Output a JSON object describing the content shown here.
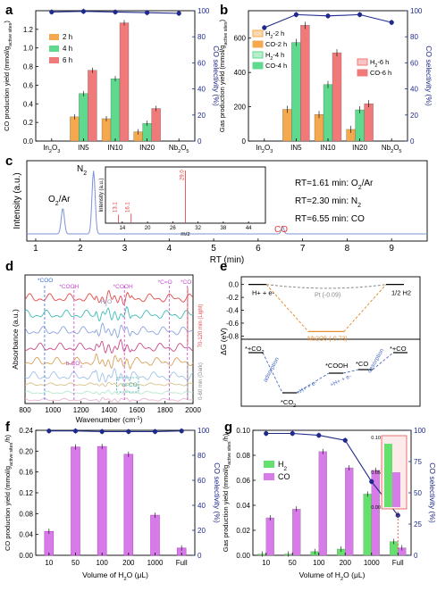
{
  "colors": {
    "orange": "#f4a94f",
    "green": "#5fd98d",
    "red": "#f07a7a",
    "navy": "#1f2a8c",
    "purple": "#d77be8",
    "green2": "#66e06d",
    "violet": "#b436c8",
    "trace_blue": "#7d93d6",
    "mass_red": "#e23b3b",
    "dash_orange": "#e69138",
    "dash_gray": "#8a8a8a"
  },
  "chart_data": [
    {
      "panel": "a",
      "type": "bar",
      "categories": [
        "In2O3",
        "IN5",
        "IN10",
        "IN20",
        "Nb2O5"
      ],
      "category_labels": [
        [
          "In",
          "2",
          "O",
          "3"
        ],
        [
          "IN5"
        ],
        [
          "IN10"
        ],
        [
          "IN20"
        ],
        [
          "Nb",
          "2",
          "O",
          "5"
        ]
      ],
      "series": [
        {
          "name": "2 h",
          "values": [
            0.0,
            0.26,
            0.24,
            0.1,
            0.0
          ]
        },
        {
          "name": "4 h",
          "values": [
            0.0,
            0.51,
            0.67,
            0.19,
            0.0
          ]
        },
        {
          "name": "6 h",
          "values": [
            0.0,
            0.76,
            1.27,
            0.35,
            0.0
          ]
        }
      ],
      "ylabel": "CO production yield (mmol/g",
      "ylabel_sub": "active sites",
      "ylabel_end": ")",
      "y2label": "CO selectivity (%)",
      "ylim": [
        0,
        1.4
      ],
      "yticks": [
        "0.0",
        "0.2",
        "0.4",
        "0.6",
        "0.8",
        "1.0",
        "1.2"
      ],
      "y2lim": [
        0,
        100
      ],
      "y2ticks": [
        "0",
        "20",
        "40",
        "60",
        "80",
        "100"
      ],
      "selectivity": [
        99.0,
        99.5,
        99.0,
        98.5,
        98.0
      ],
      "legend_position": "upper-left"
    },
    {
      "panel": "b",
      "type": "bar",
      "categories": [
        "In2O3",
        "IN5",
        "IN10",
        "IN20",
        "Nb2O5"
      ],
      "category_labels": [
        [
          "In",
          "2",
          "O",
          "3"
        ],
        [
          "IN5"
        ],
        [
          "IN10"
        ],
        [
          "IN20"
        ],
        [
          "Nb",
          "2",
          "O",
          "5"
        ]
      ],
      "series": [
        {
          "name": "H2-2 h",
          "legend_label": [
            "H",
            "2",
            "-2 h"
          ],
          "values": [
            0,
            0,
            0,
            0,
            0
          ]
        },
        {
          "name": "CO-2 h",
          "values": [
            0,
            185,
            155,
            68,
            0
          ]
        },
        {
          "name": "H2-4 h",
          "legend_label": [
            "H",
            "2",
            "-4 h"
          ],
          "values": [
            0,
            0,
            0,
            0,
            0
          ]
        },
        {
          "name": "CO-4 h",
          "values": [
            0,
            575,
            330,
            182,
            0
          ]
        },
        {
          "name": "H2-6 h",
          "legend_label": [
            "H",
            "2",
            "-6 h"
          ],
          "values": [
            0,
            0,
            0,
            0,
            0
          ]
        },
        {
          "name": "CO-6 h",
          "values": [
            0,
            675,
            515,
            218,
            0
          ]
        }
      ],
      "ylabel": "Gas production yield (mmol/g",
      "ylabel_sub": "active sites",
      "ylabel_end": ")",
      "y2label": "CO selectivity (%)",
      "ylim": [
        0,
        760
      ],
      "yticks": [
        "0",
        "200",
        "400",
        "600"
      ],
      "y2lim": [
        0,
        100
      ],
      "y2ticks": [
        "0",
        "20",
        "40",
        "60",
        "80",
        "100"
      ],
      "selectivity": [
        87.0,
        97.0,
        96.0,
        97.0,
        91.0
      ]
    },
    {
      "panel": "c",
      "type": "line",
      "xlabel": "RT (min)",
      "ylabel": "Intensity (a.u.)",
      "xlim": [
        0.8,
        9.8
      ],
      "xticks": [
        "1",
        "2",
        "3",
        "4",
        "5",
        "6",
        "7",
        "8",
        "9"
      ],
      "peaks": [
        {
          "rt": 1.61,
          "label": "O2/Ar",
          "label_parts": [
            "O",
            "2",
            "/Ar"
          ],
          "height": 0.38
        },
        {
          "rt": 2.3,
          "label": "N2",
          "label_parts": [
            "N",
            "2",
            ""
          ],
          "height": 0.93
        },
        {
          "rt": 6.55,
          "label": "CO",
          "label_parts": [
            "CO",
            "",
            ""
          ],
          "height": 0.12
        }
      ],
      "annotations": [
        {
          "text": "RT=1.61 min: O2/Ar",
          "parts": [
            "RT=1.61 min: O",
            "2",
            "/Ar"
          ]
        },
        {
          "text": "RT=2.30 min: N2",
          "parts": [
            "RT=2.30 min: N",
            "2",
            ""
          ]
        },
        {
          "text": "RT=6.55 min: CO",
          "parts": [
            "RT=6.55 min: CO",
            "",
            ""
          ]
        }
      ],
      "inset": {
        "xlabel": "m/z",
        "ylabel": "Intensity (a.u.)",
        "xlim": [
          10,
          48
        ],
        "xticks": [
          "14",
          "20",
          "26",
          "32",
          "38",
          "44"
        ],
        "peaks": [
          {
            "mz": 13.1,
            "label": "13.1",
            "h": 0.16
          },
          {
            "mz": 16.1,
            "label": "16.1",
            "h": 0.18
          },
          {
            "mz": 29.0,
            "label": "29.0",
            "h": 1.0
          }
        ]
      }
    },
    {
      "panel": "d",
      "type": "line",
      "xlabel": "Wavenumber (cm",
      "xlabel_sup": "-1",
      "xlabel_end": ")",
      "ylabel": "Absorbance (a.u.)",
      "xlim": [
        800,
        2000
      ],
      "xticks": [
        "800",
        "1000",
        "1200",
        "1400",
        "1600",
        "1800",
        "2000"
      ],
      "band_labels": [
        "*COO",
        "*COOH",
        "*COOH",
        "*C=O",
        "*CO",
        "H2O",
        "b-CO3",
        "m-CO3"
      ],
      "band_label_parts": [
        [
          "*COO"
        ],
        [
          "*COOH"
        ],
        [
          "*COOH"
        ],
        [
          "*C=O"
        ],
        [
          "*CO"
        ],
        [
          "H",
          "2",
          "O"
        ],
        [
          "b-CO",
          "3",
          ""
        ],
        [
          "m-CO",
          "3",
          ""
        ]
      ],
      "band_positions": [
        940,
        1150,
        1510,
        1830,
        1960,
        1380,
        1160,
        1570
      ],
      "range_labels": [
        "70-120 min (Light)",
        "0-60 min (Dark)"
      ],
      "spectra_colors": [
        "#e24a4a",
        "#3fbbb6",
        "#8aa3dd",
        "#c84a88",
        "#d8a25a",
        "#9fc2e8",
        "#d8c28a",
        "#b7e8cf",
        "#e8b3d1"
      ]
    },
    {
      "panel": "e",
      "type": "line",
      "top": {
        "ylabel": "ΔG (eV)",
        "ylim": [
          -0.85,
          0.12
        ],
        "yticks": [
          "0.0",
          "-0.2",
          "-0.4",
          "-0.6",
          "-0.8"
        ],
        "left_label": "H+ + e-",
        "right_label": "1/2 H2",
        "pt_label": "Pt (-0.09)",
        "nb_label": "Nb2O5 (-0.73)",
        "pt_value": -0.09,
        "nb_value": -0.73
      },
      "bottom": {
        "states": [
          "*+CO2",
          "*CO2",
          "*COOH",
          "*CO",
          "*+CO"
        ],
        "state_label_parts": [
          [
            "*+CO",
            "2",
            ""
          ],
          [
            "*CO",
            "2",
            ""
          ],
          [
            "*COOH",
            "",
            ""
          ],
          [
            "*CO",
            "",
            ""
          ],
          [
            "*+CO",
            "",
            ""
          ]
        ],
        "steps": [
          "adsorption",
          "+H+ + e-",
          "+H+ + e-",
          "desorption"
        ],
        "energies": [
          0.0,
          -0.85,
          -0.15,
          -0.05,
          0.55
        ]
      }
    },
    {
      "panel": "f",
      "type": "bar",
      "categories": [
        "10",
        "50",
        "100",
        "200",
        "1000",
        "Full"
      ],
      "values": [
        0.046,
        0.208,
        0.209,
        0.194,
        0.077,
        0.014
      ],
      "xlabel": "Volume of H2O (μL)",
      "xlabel_parts": [
        "Volume of H",
        "2",
        "O (μL)"
      ],
      "ylabel": "CO production yield (mmol/g",
      "ylabel_sub": "active sites",
      "ylabel_end": "/h)",
      "y2label": "CO selectivity (%)",
      "ylim": [
        0,
        0.24
      ],
      "yticks": [
        "0.00",
        "0.04",
        "0.08",
        "0.12",
        "0.16",
        "0.20",
        "0.24"
      ],
      "y2lim": [
        0,
        100
      ],
      "y2ticks": [
        "0",
        "20",
        "40",
        "60",
        "80",
        "100"
      ],
      "selectivity": [
        99.5,
        99.5,
        99.0,
        99.0,
        99.0,
        99.5
      ]
    },
    {
      "panel": "g",
      "type": "bar",
      "categories": [
        "10",
        "50",
        "100",
        "200",
        "1000",
        "Full"
      ],
      "series": [
        {
          "name": "H2",
          "legend_label": [
            "H",
            "2",
            ""
          ],
          "values": [
            0.001,
            0.001,
            0.003,
            0.005,
            0.049,
            0.011
          ]
        },
        {
          "name": "CO",
          "values": [
            0.03,
            0.037,
            0.083,
            0.07,
            0.068,
            0.006
          ]
        }
      ],
      "xlabel": "Volume of H2O (μL)",
      "xlabel_parts": [
        "Volume of H",
        "2",
        "O (μL)"
      ],
      "ylabel": "Gas production yield (mmol/g",
      "ylabel_sub": "active sites",
      "ylabel_end": "/h)",
      "y2label": "CO selectivity (%)",
      "ylim": [
        0,
        0.1
      ],
      "yticks": [
        "0.00",
        "0.02",
        "0.04",
        "0.06",
        "0.08",
        "0.10"
      ],
      "y2lim": [
        0,
        100
      ],
      "y2ticks": [
        "0",
        "25",
        "50",
        "75",
        "100"
      ],
      "selectivity": [
        97.5,
        97.5,
        96.0,
        92.0,
        59.0,
        32.0
      ],
      "inset": {
        "yticks": [
          "0.00",
          "0.05",
          "0.10"
        ],
        "ylim": [
          0,
          0.1
        ],
        "h2": 0.091,
        "co": 0.05
      }
    }
  ]
}
